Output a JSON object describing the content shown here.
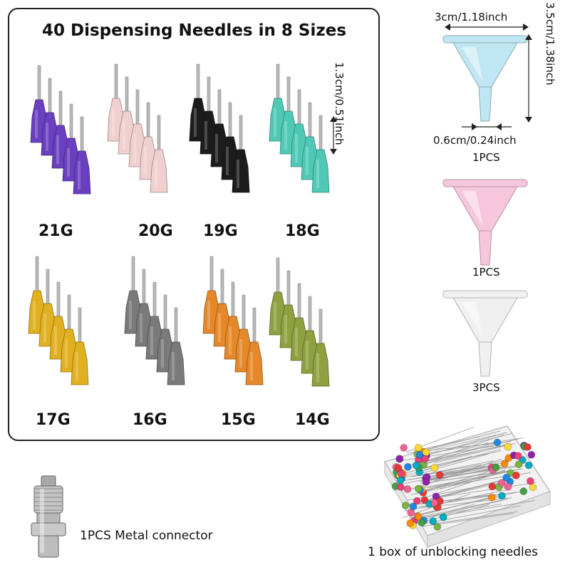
{
  "title": "40 Dispensing Needles in 8 Sizes",
  "needle_length": "1.3cm/0.51inch",
  "gauges": [
    {
      "label": "21G",
      "color": "#6a3fc0"
    },
    {
      "label": "20G",
      "color": "#f0cfcf"
    },
    {
      "label": "19G",
      "color": "#1c1c1c"
    },
    {
      "label": "18G",
      "color": "#4fc9b6"
    },
    {
      "label": "17G",
      "color": "#e0b020"
    },
    {
      "label": "16G",
      "color": "#7a7a7a"
    },
    {
      "label": "15G",
      "color": "#e5882a"
    },
    {
      "label": "14G",
      "color": "#8fa040"
    }
  ],
  "funnel": {
    "width": "3cm/1.18inch",
    "height": "3.5cm/1.38inch",
    "tip": "0.6cm/0.24inch"
  },
  "funnels": [
    {
      "qty": "1PCS",
      "color": "#bfe6f2"
    },
    {
      "qty": "1PCS",
      "color": "#f6c6dc"
    },
    {
      "qty": "3PCS",
      "color": "#f0f0f0"
    }
  ],
  "connector_label": "1PCS Metal connector",
  "pins_label": "1 box of unblocking needles"
}
